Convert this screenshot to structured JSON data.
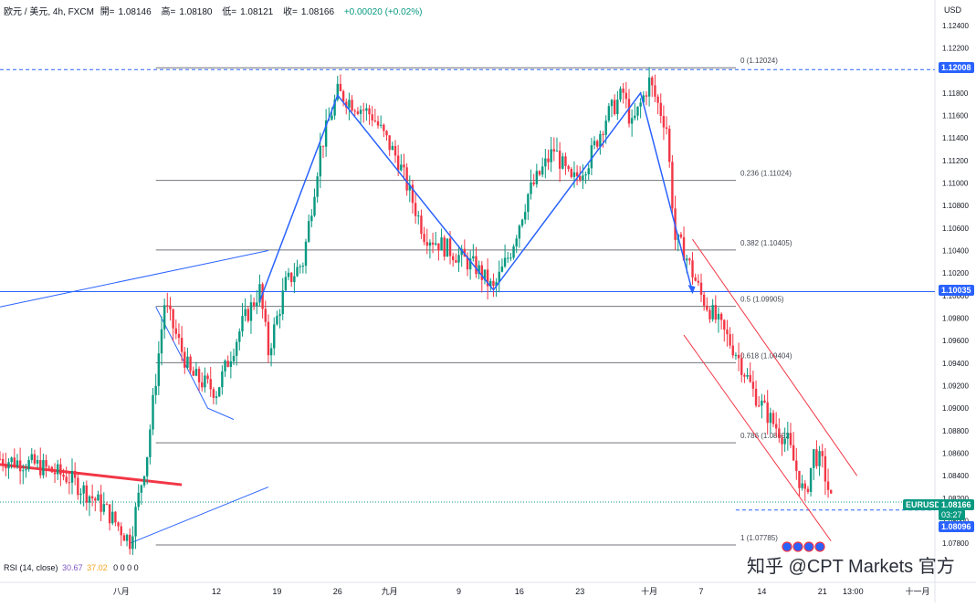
{
  "header": {
    "symbol": "欧元 / 美元, 4h, FXCM",
    "open_label": "開=",
    "open": "1.08146",
    "high_label": "高=",
    "high": "1.08180",
    "low_label": "低=",
    "low": "1.08121",
    "close_label": "收=",
    "close": "1.08166",
    "change": "+0.00020 (+0.02%)"
  },
  "currency": "USD",
  "rsi": {
    "label": "RSI (14, close)",
    "value1": "30.67",
    "value2": "37.02",
    "zeros": "0 0 0 0"
  },
  "watermark": "知乎 @CPT Markets 官方",
  "tags": {
    "line_top": "1.12008",
    "line_mid": "1.10035",
    "symbol": "EURUSD",
    "last_price": "1.08166",
    "countdown": "03:27",
    "low_line": "1.08096"
  },
  "colors": {
    "up": "#089981",
    "down": "#f23645",
    "trend": "#2962ff",
    "channel": "#f23645",
    "fib": "#787b86"
  },
  "chart_data": {
    "type": "candlestick",
    "y_axis": {
      "range": [
        1.0768,
        1.1248
      ],
      "ticks": [
        "1.12400",
        "1.12200",
        "1.12000",
        "1.11800",
        "1.11600",
        "1.11400",
        "1.11200",
        "1.11000",
        "1.10800",
        "1.10600",
        "1.10400",
        "1.10200",
        "1.10000",
        "1.09800",
        "1.09600",
        "1.09400",
        "1.09200",
        "1.09000",
        "1.08800",
        "1.08600",
        "1.08400",
        "1.08200",
        "1.08000",
        "1.07800"
      ]
    },
    "x_axis": {
      "ticks": [
        {
          "label": "八月",
          "date": "2023-08-01"
        },
        {
          "label": "12",
          "date": "2023-08-12"
        },
        {
          "label": "19",
          "date": "2023-08-19"
        },
        {
          "label": "26",
          "date": "2023-08-26"
        },
        {
          "label": "九月",
          "date": "2023-09-01"
        },
        {
          "label": "9",
          "date": "2023-09-09"
        },
        {
          "label": "16",
          "date": "2023-09-16"
        },
        {
          "label": "23",
          "date": "2023-09-23"
        },
        {
          "label": "十月",
          "date": "2023-10-01"
        },
        {
          "label": "7",
          "date": "2023-10-07"
        },
        {
          "label": "14",
          "date": "2023-10-14"
        },
        {
          "label": "21",
          "date": "2023-10-21"
        },
        {
          "label": "13:00",
          "date": "2023-10-24 13:00"
        },
        {
          "label": "十一月",
          "date": "2023-11-01"
        }
      ]
    },
    "fibonacci": [
      {
        "label": "0 (1.12024)",
        "value": 1.12024
      },
      {
        "label": "0.236 (1.11024)",
        "value": 1.11024
      },
      {
        "label": "0.382 (1.10405)",
        "value": 1.10405
      },
      {
        "label": "0.5 (1.09905)",
        "value": 1.09905
      },
      {
        "label": "0.618 (1.09404)",
        "value": 1.09404
      },
      {
        "label": "0.786 (1.08692)",
        "value": 1.08692
      },
      {
        "label": "1 (1.07785)",
        "value": 1.07785
      }
    ],
    "horizontal_lines": [
      {
        "value": 1.12008,
        "style": "dashed"
      },
      {
        "value": 1.10035,
        "style": "solid"
      },
      {
        "value": 1.08096,
        "style": "dashed"
      },
      {
        "value": 1.08166,
        "style": "dotted"
      }
    ],
    "price_path": [
      [
        "2023-07-18",
        1.0855
      ],
      [
        "2023-07-22",
        1.085
      ],
      [
        "2023-07-26",
        1.0838
      ],
      [
        "2023-07-30",
        1.0812
      ],
      [
        "2023-08-02",
        1.0782
      ],
      [
        "2023-08-04",
        1.086
      ],
      [
        "2023-08-06",
        1.0993
      ],
      [
        "2023-08-09",
        1.093
      ],
      [
        "2023-08-12",
        1.0915
      ],
      [
        "2023-08-15",
        1.0975
      ],
      [
        "2023-08-17",
        1.1005
      ],
      [
        "2023-08-18",
        1.095
      ],
      [
        "2023-08-20",
        1.101
      ],
      [
        "2023-08-22",
        1.103
      ],
      [
        "2023-08-24",
        1.113
      ],
      [
        "2023-08-26",
        1.118
      ],
      [
        "2023-08-28",
        1.117
      ],
      [
        "2023-08-30",
        1.116
      ],
      [
        "2023-09-02",
        1.112
      ],
      [
        "2023-09-05",
        1.1055
      ],
      [
        "2023-09-08",
        1.104
      ],
      [
        "2023-09-11",
        1.1025
      ],
      [
        "2023-09-13",
        1.1005
      ],
      [
        "2023-09-15",
        1.104
      ],
      [
        "2023-09-17",
        1.109
      ],
      [
        "2023-09-20",
        1.113
      ],
      [
        "2023-09-22",
        1.11
      ],
      [
        "2023-09-24",
        1.112
      ],
      [
        "2023-09-26",
        1.1158
      ],
      [
        "2023-09-28",
        1.118
      ],
      [
        "2023-09-29",
        1.115
      ],
      [
        "2023-10-01",
        1.119
      ],
      [
        "2023-10-03",
        1.115
      ],
      [
        "2023-10-04",
        1.105
      ],
      [
        "2023-10-05",
        1.104
      ],
      [
        "2023-10-07",
        1.1
      ],
      [
        "2023-10-09",
        1.0975
      ],
      [
        "2023-10-11",
        1.095
      ],
      [
        "2023-10-13",
        1.0915
      ],
      [
        "2023-10-15",
        1.089
      ],
      [
        "2023-10-17",
        1.087
      ],
      [
        "2023-10-19",
        1.082
      ],
      [
        "2023-10-20",
        1.086
      ],
      [
        "2023-10-21",
        1.085
      ],
      [
        "2023-10-22",
        1.0818
      ]
    ],
    "trend_path": [
      [
        "2023-08-17",
        1.0995
      ],
      [
        "2023-08-26",
        1.1178
      ],
      [
        "2023-09-13",
        1.1005
      ],
      [
        "2023-09-30",
        1.118
      ],
      [
        "2023-10-06",
        1.1003
      ]
    ],
    "down_channel": {
      "upper": [
        [
          "2023-10-06",
          1.105
        ],
        [
          "2023-10-25",
          1.084
        ]
      ],
      "lower": [
        [
          "2023-10-05",
          1.0965
        ],
        [
          "2023-10-22",
          1.0782
        ]
      ]
    },
    "up_channel": {
      "upper": [
        [
          "2023-07-18",
          1.099
        ],
        [
          "2023-08-18",
          1.104
        ]
      ],
      "lower": [
        [
          "2023-08-02",
          1.078
        ],
        [
          "2023-08-18",
          1.083
        ]
      ]
    },
    "down_trendline": [
      [
        "2023-07-18",
        1.085
      ],
      [
        "2023-08-08",
        1.0832
      ]
    ],
    "small_wedge": [
      [
        "2023-08-05",
        1.099
      ],
      [
        "2023-08-11",
        1.09
      ],
      [
        "2023-08-14",
        1.089
      ]
    ],
    "last_price": 1.08166
  }
}
